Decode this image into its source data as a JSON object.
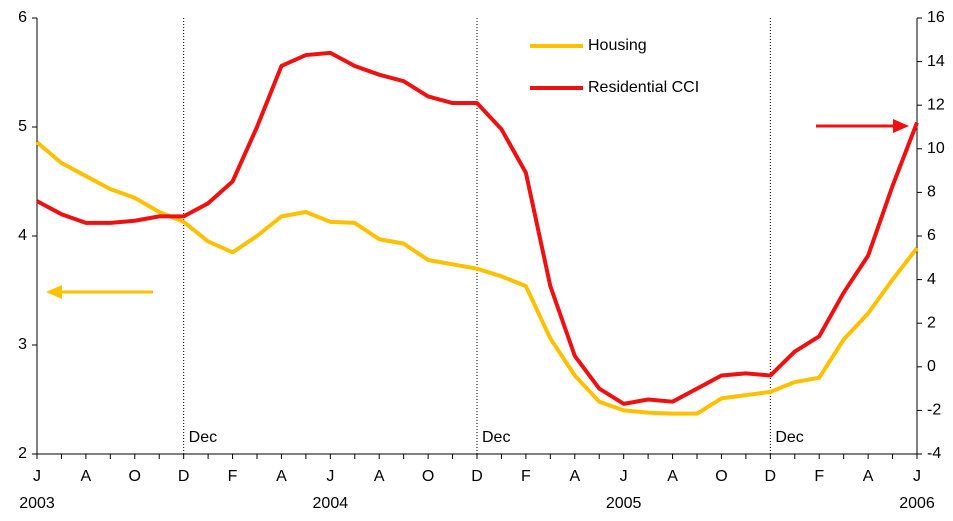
{
  "chart_data": {
    "type": "line",
    "categories": [
      "J",
      null,
      "A",
      null,
      "O",
      null,
      "D",
      null,
      "F",
      null,
      "A",
      null,
      "J",
      null,
      "A",
      null,
      "O",
      null,
      "D",
      null,
      "F",
      null,
      "A",
      null,
      "J",
      null,
      "A",
      null,
      "O",
      null,
      "D",
      null,
      "F",
      null,
      "A",
      null,
      "J"
    ],
    "years": [
      "2003",
      null,
      null,
      null,
      null,
      null,
      null,
      null,
      null,
      null,
      null,
      null,
      "2004",
      null,
      null,
      null,
      null,
      null,
      null,
      null,
      null,
      null,
      null,
      null,
      "2005",
      null,
      null,
      null,
      null,
      null,
      null,
      null,
      null,
      null,
      null,
      null,
      "2006"
    ],
    "annotations": [
      "Dec",
      "Dec",
      "Dec"
    ],
    "annotation_category": "D",
    "series": [
      {
        "name": "Housing",
        "color": "#ffc000",
        "axis": "y",
        "values": [
          4.86,
          4.67,
          4.55,
          4.43,
          4.35,
          4.22,
          4.13,
          3.95,
          3.85,
          4.0,
          4.18,
          4.22,
          4.13,
          4.12,
          3.97,
          3.93,
          3.78,
          3.74,
          3.7,
          3.63,
          3.54,
          3.06,
          2.72,
          2.48,
          2.4,
          2.38,
          2.37,
          2.37,
          2.51,
          2.54,
          2.57,
          2.66,
          2.7,
          3.05,
          3.29,
          3.6,
          3.89
        ]
      },
      {
        "name": "Residential CCI",
        "color": "#ee1111",
        "axis": "y2",
        "values": [
          7.6,
          7.0,
          6.6,
          6.6,
          6.7,
          6.9,
          6.9,
          7.5,
          8.5,
          11.0,
          13.8,
          14.3,
          14.4,
          13.8,
          13.4,
          13.1,
          12.4,
          12.1,
          12.1,
          10.9,
          8.9,
          3.7,
          0.5,
          -1.0,
          -1.7,
          -1.5,
          -1.6,
          -1.0,
          -0.4,
          -0.3,
          -0.4,
          0.7,
          1.4,
          3.4,
          5.1,
          8.3,
          11.2
        ]
      }
    ],
    "ylim": [
      2,
      6
    ],
    "yticks": [
      2,
      3,
      4,
      5,
      6
    ],
    "y2lim": [
      -4,
      16
    ],
    "y2ticks": [
      -4,
      -2,
      0,
      2,
      4,
      6,
      8,
      10,
      12,
      14,
      16
    ]
  }
}
